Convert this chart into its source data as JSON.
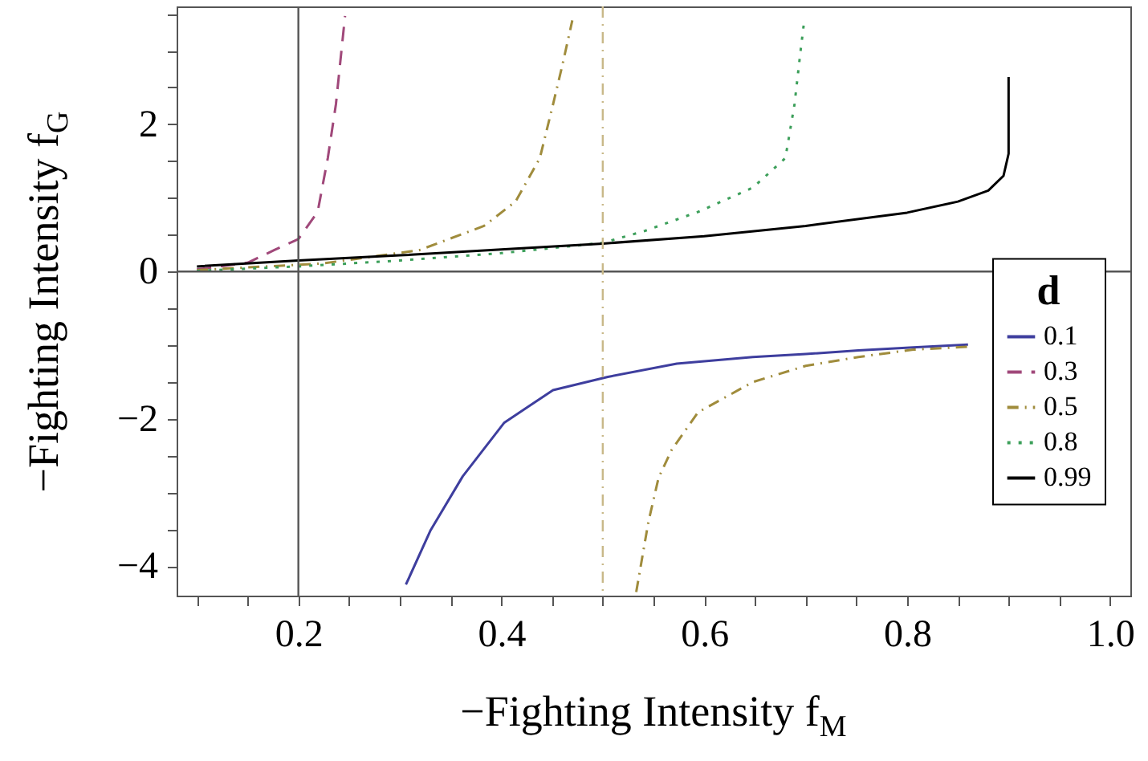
{
  "chart_data": {
    "type": "line",
    "xlabel": "−Fighting Intensity f$_{M}$",
    "ylabel": "−Fighting Intensity f$_{G}$",
    "legend_title": "d",
    "legend": "right",
    "grid": false,
    "marker": "none",
    "xlim": [
      0.08,
      1.02
    ],
    "ylim": [
      -4.4,
      3.6
    ],
    "xticks": [
      {
        "value": 0.1,
        "label": null
      },
      {
        "value": 0.15,
        "label": null
      },
      0.2,
      {
        "value": 0.25,
        "label": null
      },
      {
        "value": 0.3,
        "label": null
      },
      {
        "value": 0.35,
        "label": null
      },
      0.4,
      {
        "value": 0.45,
        "label": null
      },
      {
        "value": 0.5,
        "label": null
      },
      {
        "value": 0.55,
        "label": null
      },
      0.6,
      {
        "value": 0.65,
        "label": null
      },
      {
        "value": 0.7,
        "label": null
      },
      {
        "value": 0.75,
        "label": null
      },
      0.8,
      {
        "value": 0.85,
        "label": null
      },
      {
        "value": 0.9,
        "label": null
      },
      {
        "value": 0.95,
        "label": null
      },
      {
        "value": 1,
        "label": "1.0"
      }
    ],
    "yticks": [
      {
        "value": -4,
        "label": "−4"
      },
      {
        "value": -3.5,
        "label": null
      },
      {
        "value": -3,
        "label": null
      },
      {
        "value": -2.5,
        "label": null
      },
      {
        "value": -2,
        "label": "−2"
      },
      {
        "value": -1.5,
        "label": null
      },
      {
        "value": -1,
        "label": null
      },
      {
        "value": -0.5,
        "label": null
      },
      0,
      {
        "value": 0.5,
        "label": null
      },
      {
        "value": 1,
        "label": null
      },
      {
        "value": 1.5,
        "label": null
      },
      2,
      {
        "value": 2.5,
        "label": null
      },
      {
        "value": 3,
        "label": null
      },
      {
        "value": 3.5,
        "label": null
      }
    ],
    "ref_lines": [
      {
        "axis": "y",
        "value": 0,
        "label": null,
        "color": "#555555",
        "line_style": "solid"
      },
      {
        "axis": "x",
        "value": 0.2,
        "label": null,
        "color": "#555555",
        "line_style": "solid"
      },
      {
        "axis": "x",
        "value": 0.5,
        "label": null,
        "color": "#c8b888",
        "line_style": "dashdot"
      }
    ],
    "series": [
      {
        "name": "0.1",
        "color": "#3e3e9e",
        "line_style": "solid",
        "x": [
          0.306,
          0.33,
          0.362,
          0.403,
          0.451,
          0.505,
          0.573,
          0.648,
          0.7,
          0.752,
          0.806,
          0.86
        ],
        "values": [
          -4.25,
          -3.52,
          -2.78,
          -2.05,
          -1.61,
          -1.43,
          -1.25,
          -1.16,
          -1.12,
          -1.07,
          -1.03,
          -0.99
        ]
      },
      {
        "name": "0.3",
        "color": "#a0487a",
        "line_style": "dashed",
        "x": [
          0.1,
          0.15,
          0.176,
          0.2,
          0.219,
          0.229,
          0.237,
          0.246
        ],
        "values": [
          0.03,
          0.12,
          0.29,
          0.44,
          0.81,
          1.54,
          2.27,
          3.47
        ]
      },
      {
        "name": "0.5",
        "color": "#a08c3c",
        "line_style": "dashdot",
        "x": [
          0.1,
          0.224,
          0.319,
          0.383,
          0.414,
          0.438,
          0.451,
          0.46,
          0.47,
          0.5,
          0.533,
          0.545,
          0.555,
          0.568,
          0.594,
          0.648,
          0.7,
          0.752,
          0.806,
          0.86
        ],
        "values": [
          0.02,
          0.11,
          0.29,
          0.62,
          0.95,
          1.54,
          2.27,
          2.79,
          3.41,
          null,
          -4.35,
          -3.4,
          -2.8,
          -2.42,
          -1.91,
          -1.5,
          -1.28,
          -1.16,
          -1.06,
          -1.02
        ]
      },
      {
        "name": "0.8",
        "color": "#3c9f5a",
        "line_style": "dotted",
        "x": [
          0.1,
          0.2,
          0.3,
          0.4,
          0.5,
          0.541,
          0.594,
          0.648,
          0.68,
          0.689,
          0.695,
          0.698
        ],
        "values": [
          0.01,
          0.07,
          0.15,
          0.25,
          0.39,
          0.55,
          0.81,
          1.14,
          1.54,
          2.27,
          3.0,
          3.34
        ]
      },
      {
        "name": "0.99",
        "color": "#000000",
        "line_style": "solid",
        "x": [
          0.1,
          0.2,
          0.3,
          0.4,
          0.5,
          0.6,
          0.7,
          0.8,
          0.85,
          0.88,
          0.895,
          0.9,
          0.9
        ],
        "values": [
          0.07,
          0.15,
          0.22,
          0.3,
          0.38,
          0.48,
          0.62,
          0.8,
          0.95,
          1.1,
          1.3,
          1.6,
          2.64
        ]
      }
    ]
  }
}
